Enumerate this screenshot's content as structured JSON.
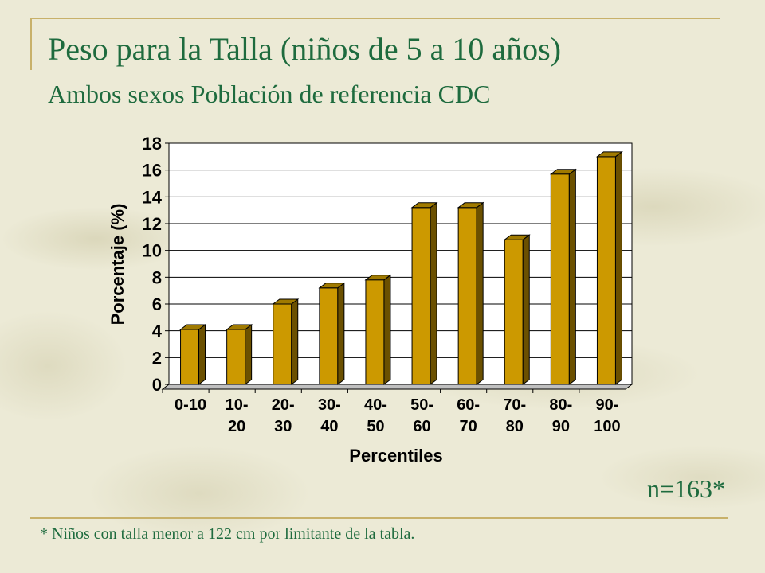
{
  "header": {
    "title": "Peso para la Talla (niños de 5 a 10 años)",
    "subtitle": "Ambos sexos Población de referencia CDC"
  },
  "sample_size": "n=163*",
  "footnote": "* Niños con talla menor a 122 cm por limitante de la tabla.",
  "colors": {
    "heading": "#1e6b3e",
    "bar_front": "#cc9900",
    "bar_side": "#6b5000",
    "bar_top": "#a07a00",
    "accent_line": "#c8b16a"
  },
  "chart_data": {
    "type": "bar",
    "categories": [
      [
        "0-10"
      ],
      [
        "10-",
        "20"
      ],
      [
        "20-",
        "30"
      ],
      [
        "30-",
        "40"
      ],
      [
        "40-",
        "50"
      ],
      [
        "50-",
        "60"
      ],
      [
        "60-",
        "70"
      ],
      [
        "70-",
        "80"
      ],
      [
        "80-",
        "90"
      ],
      [
        "90-",
        "100"
      ]
    ],
    "values": [
      4.1,
      4.1,
      6.0,
      7.2,
      7.8,
      13.2,
      13.2,
      10.8,
      15.7,
      17.0
    ],
    "xlabel": "Percentiles",
    "ylabel": "Porcentaje (%)",
    "ylim": [
      0,
      18
    ],
    "yticks": [
      0,
      2,
      4,
      6,
      8,
      10,
      12,
      14,
      16,
      18
    ],
    "grid": true,
    "legend": "none"
  }
}
